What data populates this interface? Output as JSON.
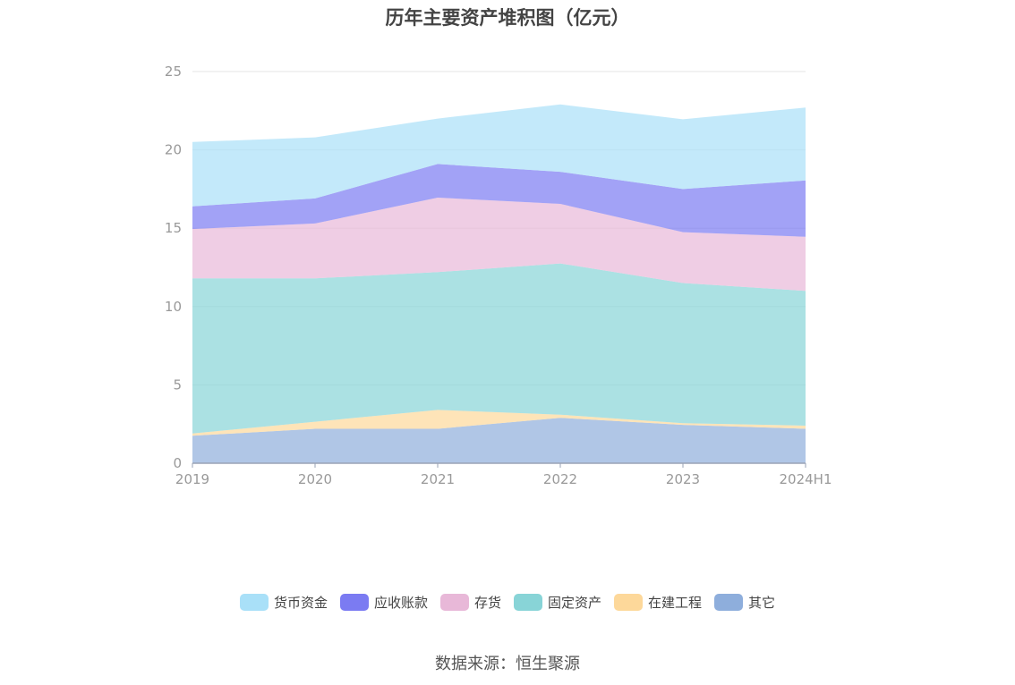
{
  "source_text": "数据来源：恒生聚源",
  "chart_data": {
    "type": "area",
    "stacked": true,
    "title": "历年主要资产堆积图（亿元）",
    "xlabel": "",
    "ylabel": "",
    "categories": [
      "2019",
      "2020",
      "2021",
      "2022",
      "2023",
      "2024H1"
    ],
    "ylim": [
      0,
      25
    ],
    "yticks": [
      0,
      5,
      10,
      15,
      20,
      25
    ],
    "grid": true,
    "legend_position": "bottom",
    "series": [
      {
        "name": "其它",
        "color": "#8eaedc",
        "values": [
          1.75,
          2.2,
          2.2,
          2.9,
          2.45,
          2.2
        ]
      },
      {
        "name": "在建工程",
        "color": "#fdd89a",
        "values": [
          0.15,
          0.45,
          1.2,
          0.2,
          0.1,
          0.2
        ]
      },
      {
        "name": "固定资产",
        "color": "#88d4d7",
        "values": [
          9.9,
          9.15,
          8.8,
          9.65,
          8.95,
          8.6
        ]
      },
      {
        "name": "存货",
        "color": "#e8b8d8",
        "values": [
          3.15,
          3.5,
          4.75,
          3.8,
          3.25,
          3.45
        ]
      },
      {
        "name": "应收账款",
        "color": "#7b7bf2",
        "values": [
          1.45,
          1.6,
          2.15,
          2.05,
          2.75,
          3.6
        ]
      },
      {
        "name": "货币资金",
        "color": "#a9e0f8",
        "values": [
          4.1,
          3.9,
          2.9,
          4.3,
          4.45,
          4.65
        ]
      }
    ],
    "legend_order": [
      "货币资金",
      "应收账款",
      "存货",
      "固定资产",
      "在建工程",
      "其它"
    ]
  }
}
